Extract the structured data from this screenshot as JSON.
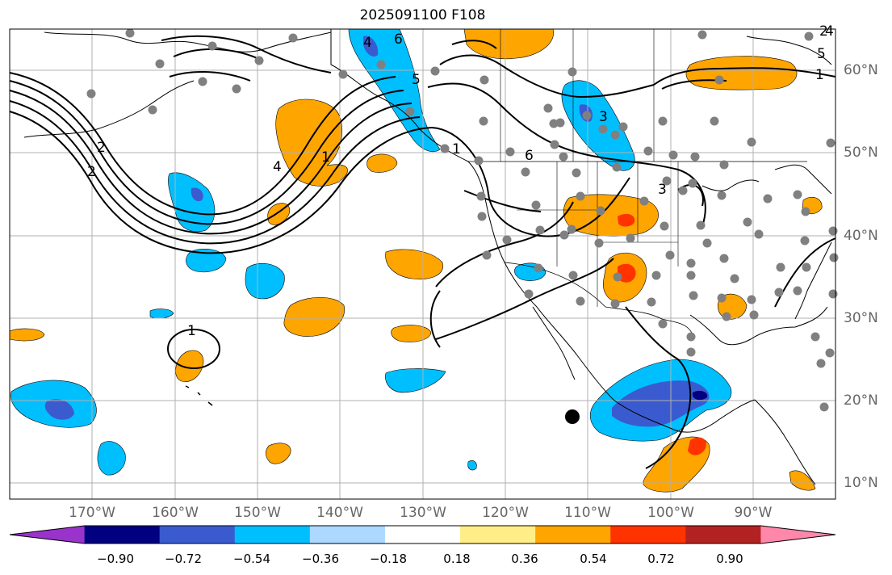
{
  "title": "2025091100 F108",
  "lon_ticks": [
    "170°W",
    "160°W",
    "150°W",
    "140°W",
    "130°W",
    "120°W",
    "110°W",
    "100°W",
    "90°W"
  ],
  "lat_ticks": [
    "60°N",
    "50°N",
    "40°N",
    "30°N",
    "20°N",
    "10°N"
  ],
  "colorbar": {
    "labels": [
      "−0.90",
      "−0.72",
      "−0.54",
      "−0.36",
      "−0.18",
      "0.18",
      "0.36",
      "0.54",
      "0.72",
      "0.90"
    ],
    "colors": [
      "#9933cc",
      "#000080",
      "#3a5bd0",
      "#00bfff",
      "#add8ff",
      "#ffffff",
      "#ffee88",
      "#ffa500",
      "#ff3300",
      "#b22222",
      "#ff88aa"
    ]
  },
  "contour_labels": [
    "4",
    "6",
    "5",
    "5",
    "2",
    "4",
    "3",
    "1",
    "6",
    "2",
    "3",
    "1",
    "1",
    "1",
    "2",
    "4"
  ],
  "colors": {
    "land_border": "#000000",
    "grid": "#b0b0b0",
    "station": "#808080",
    "contour": "#000000"
  }
}
